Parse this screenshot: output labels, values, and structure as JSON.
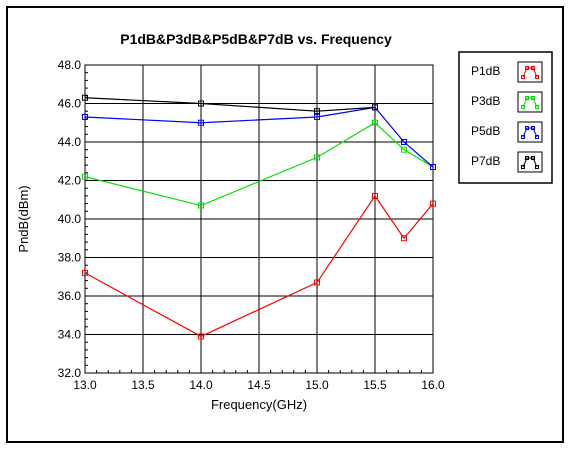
{
  "chart_data": {
    "type": "line",
    "title": "P1dB&P3dB&P5dB&P7dB vs. Frequency",
    "xlabel": "Frequency(GHz)",
    "ylabel": "PndB(dBm)",
    "xlim": [
      13.0,
      16.0
    ],
    "ylim": [
      32.0,
      48.0
    ],
    "x_ticks": [
      "13.0",
      "13.5",
      "14.0",
      "14.5",
      "15.0",
      "15.5",
      "16.0"
    ],
    "y_ticks": [
      "32.0",
      "34.0",
      "36.0",
      "38.0",
      "40.0",
      "42.0",
      "44.0",
      "46.0",
      "48.0"
    ],
    "grid": true,
    "legend_position": "right",
    "series": [
      {
        "name": "P1dB",
        "color": "#ff0000",
        "x": [
          13.0,
          14.0,
          15.0,
          15.5,
          15.75,
          16.0
        ],
        "y": [
          37.2,
          33.9,
          36.7,
          41.2,
          39.0,
          40.8
        ]
      },
      {
        "name": "P3dB",
        "color": "#00e000",
        "x": [
          13.0,
          14.0,
          15.0,
          15.5,
          15.75,
          16.0
        ],
        "y": [
          42.2,
          40.7,
          43.2,
          45.0,
          43.6,
          42.7
        ]
      },
      {
        "name": "P5dB",
        "color": "#0000ff",
        "x": [
          13.0,
          14.0,
          15.0,
          15.5,
          15.75,
          16.0
        ],
        "y": [
          45.3,
          45.0,
          45.3,
          45.8,
          44.0,
          42.7
        ]
      },
      {
        "name": "P7dB",
        "color": "#000000",
        "x": [
          13.0,
          14.0,
          15.0,
          15.5
        ],
        "y": [
          46.3,
          46.0,
          45.6,
          45.8
        ]
      }
    ]
  }
}
